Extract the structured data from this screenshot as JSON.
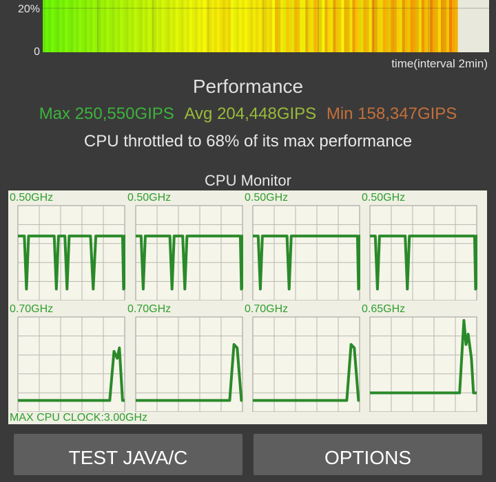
{
  "throttle_chart": {
    "y_labels": [
      "20%",
      "0"
    ],
    "x_label": "time(interval 2min)"
  },
  "performance": {
    "title": "Performance",
    "max": "Max 250,550GIPS",
    "avg": "Avg 204,448GIPS",
    "min": "Min 158,347GIPS",
    "throttle_message": "CPU throttled to 68% of its max performance",
    "colors": {
      "max": "#3db33d",
      "avg": "#9aba3a",
      "min": "#c4703a"
    }
  },
  "cpu_monitor": {
    "title": "CPU Monitor",
    "cores": [
      {
        "freq": "0.50GHz",
        "level": 0.68
      },
      {
        "freq": "0.50GHz",
        "level": 0.68
      },
      {
        "freq": "0.50GHz",
        "level": 0.68
      },
      {
        "freq": "0.50GHz",
        "level": 0.68
      },
      {
        "freq": "0.70GHz",
        "level": 0.12
      },
      {
        "freq": "0.70GHz",
        "level": 0.12
      },
      {
        "freq": "0.70GHz",
        "level": 0.12
      },
      {
        "freq": "0.65GHz",
        "level": 0.2
      }
    ],
    "max_clock": "MAX CPU CLOCK:3.00GHz"
  },
  "buttons": {
    "test": "TEST JAVA/C",
    "options": "OPTIONS"
  }
}
